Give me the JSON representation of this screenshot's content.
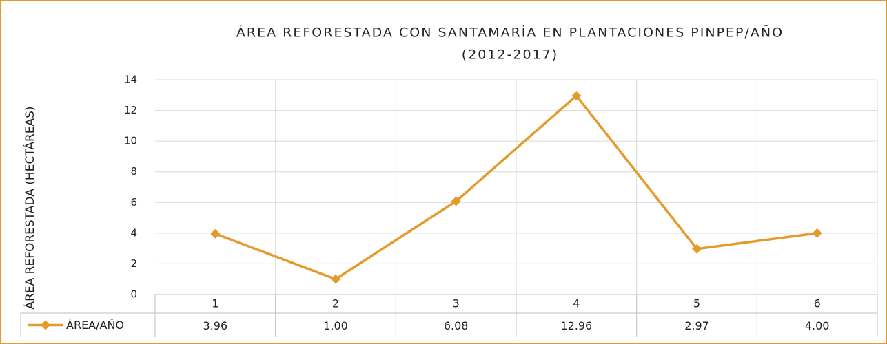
{
  "chart_data": {
    "type": "line",
    "title": [
      "ÁREA REFORESTADA CON SANTAMARÍA EN PLANTACIONES PINPEP/AÑO",
      "(2012-2017)"
    ],
    "y_label": "ÁREA REFORESTADA (HECTÁREAS)",
    "categories": [
      "1",
      "2",
      "3",
      "4",
      "5",
      "6"
    ],
    "series": [
      {
        "name": "ÁREA/AÑO",
        "color": "#e39b2c",
        "values": [
          3.96,
          1.0,
          6.08,
          12.96,
          2.97,
          4.0
        ],
        "value_labels": [
          "3.96",
          "1.00",
          "6.08",
          "12.96",
          "2.97",
          "4.00"
        ]
      }
    ],
    "ylim": [
      0,
      14
    ],
    "yticks": [
      0,
      2,
      4,
      6,
      8,
      10,
      12,
      14
    ],
    "grid": true
  }
}
